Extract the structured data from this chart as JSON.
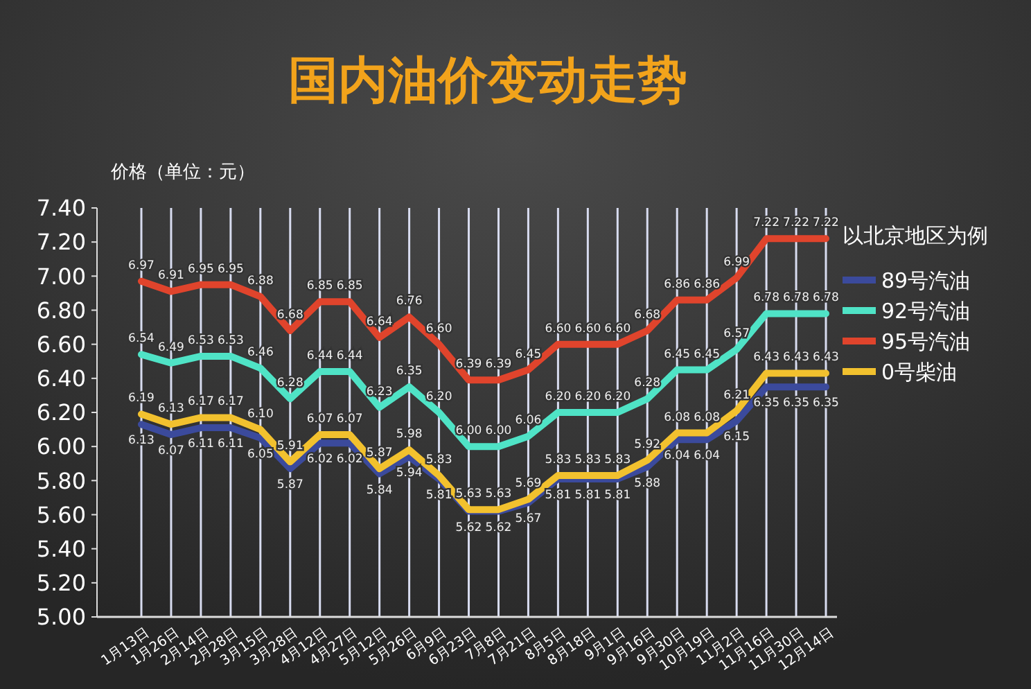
{
  "chart_data": {
    "type": "line",
    "title": "国内油价变动走势",
    "ylabel": "价格（单位：元）",
    "legend_title": "以北京地区为例",
    "legend": "right",
    "categories": [
      "1月13日",
      "1月26日",
      "2月14日",
      "2月28日",
      "3月15日",
      "3月28日",
      "4月12日",
      "4月27日",
      "5月12日",
      "5月26日",
      "6月9日",
      "6月23日",
      "7月8日",
      "7月21日",
      "8月5日",
      "8月18日",
      "9月1日",
      "9月16日",
      "9月30日",
      "10月19日",
      "11月2日",
      "11月16日",
      "11月30日",
      "12月14日"
    ],
    "series": [
      {
        "name": "89号汽油",
        "color": "#3b4a9c",
        "values": [
          6.13,
          6.07,
          6.11,
          6.11,
          6.05,
          5.87,
          6.02,
          6.02,
          5.84,
          5.94,
          5.81,
          5.62,
          5.62,
          5.67,
          5.81,
          5.81,
          5.81,
          5.88,
          6.04,
          6.04,
          6.15,
          6.35,
          6.35,
          6.35
        ],
        "value_labels": [
          "6.13",
          "6.07",
          "6.11",
          "6.11",
          "6.05",
          "5.87",
          "6.02",
          "6.02",
          "5.84",
          "5.94",
          "5.81",
          "5.62",
          "5.62",
          "5.67",
          "5.81",
          "5.81",
          "5.81",
          "5.88",
          "6.04",
          "6.04",
          "6.15",
          "6.35",
          "6.35",
          "6.35"
        ]
      },
      {
        "name": "92号汽油",
        "color": "#4fe3c6",
        "values": [
          6.54,
          6.49,
          6.53,
          6.53,
          6.46,
          6.28,
          6.44,
          6.44,
          6.23,
          6.35,
          6.2,
          6.0,
          6.0,
          6.06,
          6.2,
          6.2,
          6.2,
          6.28,
          6.45,
          6.45,
          6.57,
          6.78,
          6.78,
          6.78
        ],
        "value_labels": [
          "6.54",
          "6.49",
          "6.53",
          "6.53",
          "6.46",
          "6.28",
          "6.44",
          "6.44",
          "6.23",
          "6.35",
          "6.20",
          "6.00",
          "6.00",
          "6.06",
          "6.20",
          "6.20",
          "6.20",
          "6.28",
          "6.45",
          "6.45",
          "6.57",
          "6.78",
          "6.78",
          "6.78"
        ]
      },
      {
        "name": "95号汽油",
        "color": "#e0442c",
        "values": [
          6.97,
          6.91,
          6.95,
          6.95,
          6.88,
          6.68,
          6.85,
          6.85,
          6.64,
          6.76,
          6.6,
          6.39,
          6.39,
          6.45,
          6.6,
          6.6,
          6.6,
          6.68,
          6.86,
          6.86,
          6.99,
          7.22,
          7.22,
          7.22
        ],
        "value_labels": [
          "6.97",
          "6.91",
          "6.95",
          "6.95",
          "6.88",
          "6.68",
          "6.85",
          "6.85",
          "6.64",
          "6.76",
          "6.60",
          "6.39",
          "6.39",
          "6.45",
          "6.60",
          "6.60",
          "6.60",
          "6.68",
          "6.86",
          "6.86",
          "6.99",
          "7.22",
          "7.22",
          "7.22"
        ]
      },
      {
        "name": "0号柴油",
        "color": "#f2c12e",
        "values": [
          6.19,
          6.13,
          6.17,
          6.17,
          6.1,
          5.91,
          6.07,
          6.07,
          5.87,
          5.98,
          5.83,
          5.63,
          5.63,
          5.69,
          5.83,
          5.83,
          5.83,
          5.92,
          6.08,
          6.08,
          6.21,
          6.43,
          6.43,
          6.43
        ],
        "value_labels": [
          "6.19",
          "6.13",
          "6.17",
          "6.17",
          "6.10",
          "5.91",
          "6.07",
          "6.07",
          "5.87",
          "5.98",
          "5.83",
          "5.63",
          "5.63",
          "5.69",
          "5.83",
          "5.83",
          "5.83",
          "5.92",
          "6.08",
          "6.08",
          "6.21",
          "6.43",
          "6.43",
          "6.43"
        ]
      }
    ],
    "ylim": [
      5,
      7.4
    ],
    "yticks": [
      {
        "value": 5,
        "label": "5.00"
      },
      {
        "value": 5.2,
        "label": "5.20"
      },
      {
        "value": 5.4,
        "label": "5.40"
      },
      {
        "value": 5.6,
        "label": "5.60"
      },
      {
        "value": 5.8,
        "label": "5.80"
      },
      {
        "value": 6,
        "label": "6.00"
      },
      {
        "value": 6.2,
        "label": "6.20"
      },
      {
        "value": 6.4,
        "label": "6.40"
      },
      {
        "value": 6.6,
        "label": "6.60"
      },
      {
        "value": 6.8,
        "label": "6.80"
      },
      {
        "value": 7,
        "label": "7.00"
      },
      {
        "value": 7.2,
        "label": "7.20"
      },
      {
        "value": 7.4,
        "label": "7.40"
      }
    ],
    "grid": "x",
    "marker": "none",
    "line_style": "solid"
  }
}
